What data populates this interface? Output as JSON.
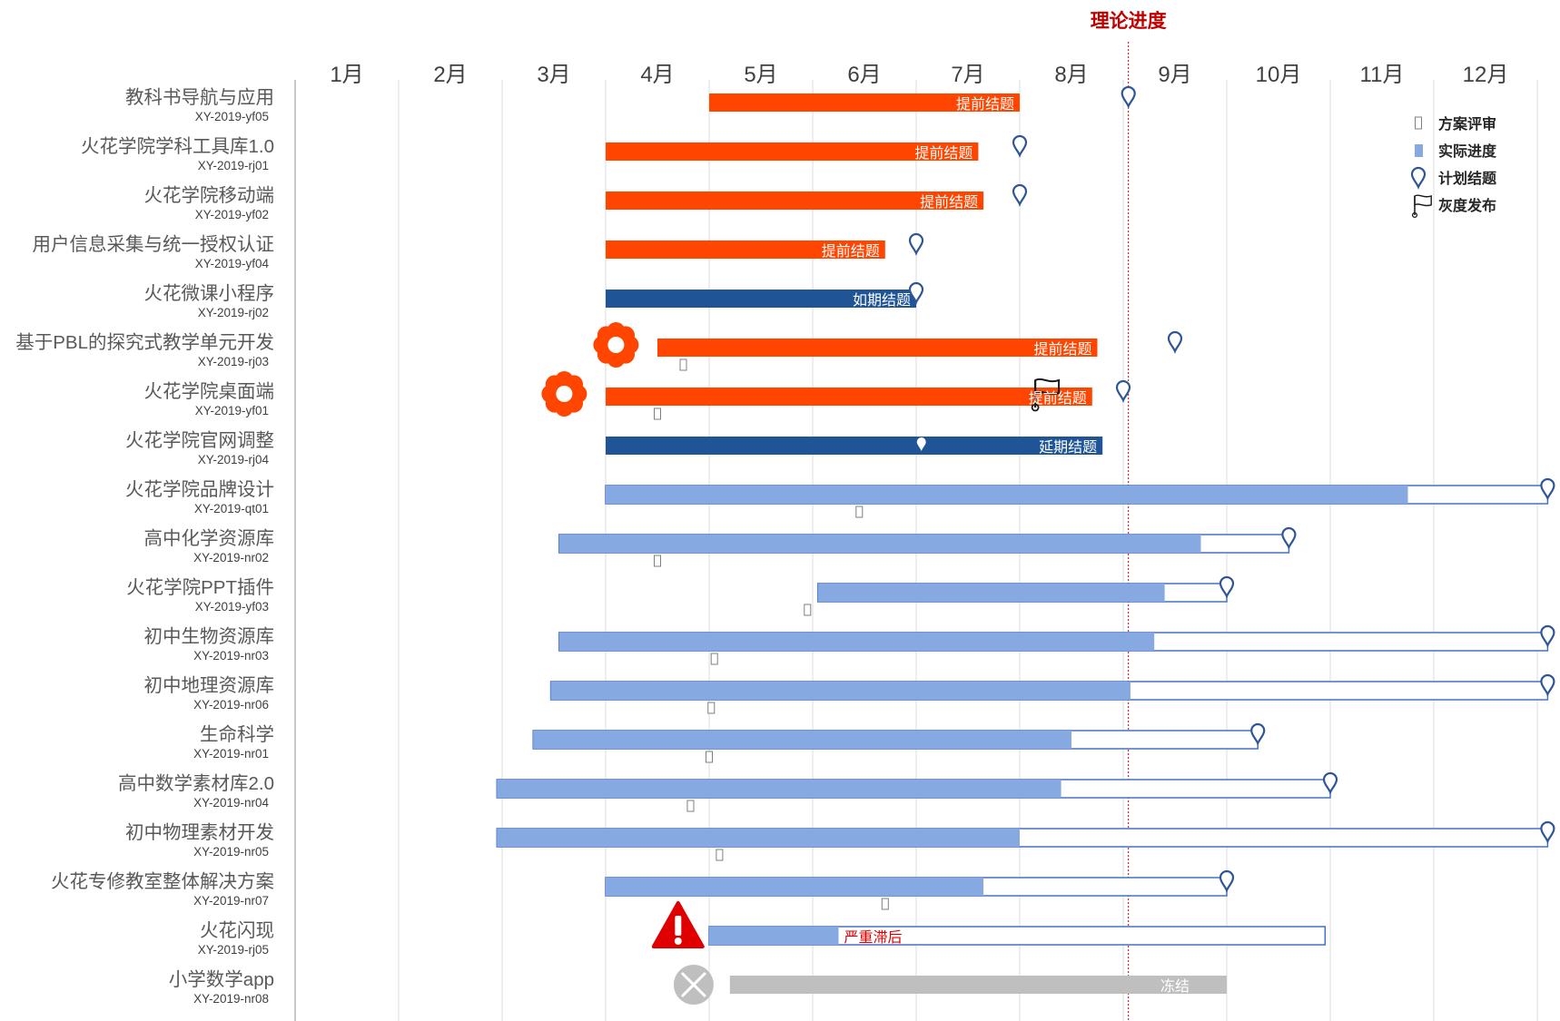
{
  "chart_data": {
    "type": "gantt",
    "theory_progress": {
      "label": "理论进度",
      "month": 8.55
    },
    "months": [
      "1月",
      "2月",
      "3月",
      "4月",
      "5月",
      "6月",
      "7月",
      "8月",
      "9月",
      "10月",
      "11月",
      "12月"
    ],
    "legend": [
      {
        "key": "review",
        "label": "方案评审"
      },
      {
        "key": "actual",
        "label": "实际进度"
      },
      {
        "key": "planned",
        "label": "计划结题"
      },
      {
        "key": "gray",
        "label": "灰度发布"
      }
    ],
    "colors": {
      "early": "#FF4500",
      "ontime": "#1F5596",
      "progress": "#86A9E2",
      "outline": "#4472C4",
      "pin": "#2F5597",
      "frozen": "#BFBFBF",
      "theory": "#C00000",
      "alert": "#E00000"
    },
    "projects": [
      {
        "name": "教科书导航与应用",
        "code": "XY-2019-yf05",
        "style": "early",
        "start": 4.5,
        "end": 7.5,
        "label": "提前结题",
        "planned": 8.55
      },
      {
        "name": "火花学院学科工具库1.0",
        "code": "XY-2019-rj01",
        "style": "early",
        "start": 3.5,
        "end": 7.1,
        "label": "提前结题",
        "planned": 7.5
      },
      {
        "name": "火花学院移动端",
        "code": "XY-2019-yf02",
        "style": "early",
        "start": 3.5,
        "end": 7.15,
        "label": "提前结题",
        "planned": 7.5
      },
      {
        "name": "用户信息采集与统一授权认证",
        "code": "XY-2019-yf04",
        "style": "early",
        "start": 3.5,
        "end": 6.2,
        "label": "提前结题",
        "planned": 6.5
      },
      {
        "name": "火花微课小程序",
        "code": "XY-2019-rj02",
        "style": "ontime",
        "start": 3.5,
        "end": 6.5,
        "label": "如期结题",
        "planned": 6.5
      },
      {
        "name": "基于PBL的探究式教学单元开发",
        "code": "XY-2019-rj03",
        "style": "early",
        "start": 4.0,
        "end": 8.25,
        "label": "提前结题",
        "planned": 9.0,
        "review": 4.25,
        "badge": "flower",
        "badge_pos": 3.6
      },
      {
        "name": "火花学院桌面端",
        "code": "XY-2019-yf01",
        "style": "early",
        "start": 3.5,
        "end": 8.2,
        "label": "提前结题",
        "planned": 8.5,
        "review": 4.0,
        "badge": "flower",
        "badge_pos": 3.1,
        "gray": 7.65
      },
      {
        "name": "火花学院官网调整",
        "code": "XY-2019-rj04",
        "style": "delayed",
        "start": 3.5,
        "end": 8.3,
        "label": "延期结题",
        "planned": 6.55
      },
      {
        "name": "火花学院品牌设计",
        "code": "XY-2019-qt01",
        "style": "progress",
        "start": 3.5,
        "end": 12.6,
        "progress": 11.25,
        "planned": 12.6,
        "review": 5.95
      },
      {
        "name": "高中化学资源库",
        "code": "XY-2019-nr02",
        "style": "progress",
        "start": 3.05,
        "end": 10.1,
        "progress": 9.25,
        "planned": 10.1,
        "review": 4.0
      },
      {
        "name": "火花学院PPT插件",
        "code": "XY-2019-yf03",
        "style": "progress",
        "start": 5.55,
        "end": 9.5,
        "progress": 8.9,
        "planned": 9.5,
        "review": 5.45
      },
      {
        "name": "初中生物资源库",
        "code": "XY-2019-nr03",
        "style": "progress",
        "start": 3.05,
        "end": 12.6,
        "progress": 8.8,
        "planned": 12.6,
        "review": 4.55
      },
      {
        "name": "初中地理资源库",
        "code": "XY-2019-nr06",
        "style": "progress",
        "start": 2.97,
        "end": 12.6,
        "progress": 8.57,
        "planned": 12.6,
        "review": 4.52
      },
      {
        "name": "生命科学",
        "code": "XY-2019-nr01",
        "style": "progress",
        "start": 2.8,
        "end": 9.8,
        "progress": 8.0,
        "planned": 9.8,
        "review": 4.5
      },
      {
        "name": "高中数学素材库2.0",
        "code": "XY-2019-nr04",
        "style": "progress",
        "start": 2.45,
        "end": 10.5,
        "progress": 7.9,
        "planned": 10.5,
        "review": 4.32
      },
      {
        "name": "初中物理素材开发",
        "code": "XY-2019-nr05",
        "style": "progress",
        "start": 2.45,
        "end": 12.6,
        "progress": 7.5,
        "planned": 12.6,
        "review": 4.6
      },
      {
        "name": "火花专修教室整体解决方案",
        "code": "XY-2019-nr07",
        "style": "progress",
        "start": 3.5,
        "end": 9.5,
        "progress": 7.15,
        "planned": 9.5,
        "review": 6.2
      },
      {
        "name": "火花闪现",
        "code": "XY-2019-rj05",
        "style": "lagging",
        "start": 4.5,
        "end": 10.45,
        "progress": 5.75,
        "label": "严重滞后",
        "badge": "warning",
        "badge_pos": 4.2
      },
      {
        "name": "小学数学app",
        "code": "XY-2019-nr08",
        "style": "frozen",
        "start": 4.7,
        "end": 9.5,
        "label": "冻结",
        "badge": "frozen-x",
        "badge_pos": 4.35
      }
    ]
  }
}
